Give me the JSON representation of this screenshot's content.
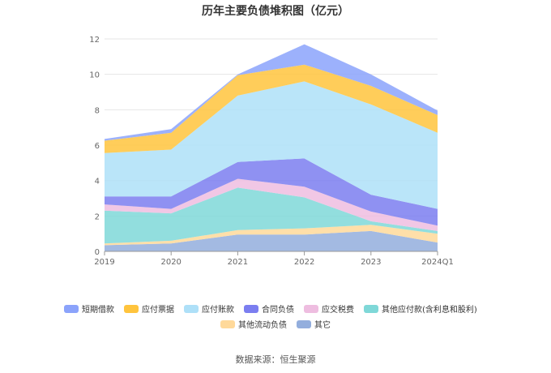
{
  "chart_data": {
    "type": "area",
    "stacked": true,
    "title": "历年主要负债堆积图（亿元）",
    "categories": [
      "2019",
      "2020",
      "2021",
      "2022",
      "2023",
      "2024Q1"
    ],
    "ylim": [
      0,
      12
    ],
    "yticks": [
      "0",
      "2",
      "4",
      "6",
      "8",
      "10",
      "12"
    ],
    "grid": true,
    "legend_position": "bottom",
    "series": [
      {
        "name": "其它",
        "color": "#93aedd",
        "values": [
          0.35,
          0.45,
          0.95,
          0.95,
          1.15,
          0.5
        ]
      },
      {
        "name": "其他流动负债",
        "color": "#ffd99a",
        "values": [
          0.1,
          0.15,
          0.25,
          0.35,
          0.35,
          0.5
        ]
      },
      {
        "name": "其他应付款(含利息和股利)",
        "color": "#7fd8d8",
        "values": [
          1.85,
          1.55,
          2.4,
          1.75,
          0.2,
          0.15
        ]
      },
      {
        "name": "应交税费",
        "color": "#eebde0",
        "values": [
          0.35,
          0.25,
          0.5,
          0.6,
          0.55,
          0.3
        ]
      },
      {
        "name": "合同负债",
        "color": "#7b7ef0",
        "values": [
          0.45,
          0.7,
          0.95,
          1.6,
          0.95,
          0.95
        ]
      },
      {
        "name": "应付账款",
        "color": "#aee0f8",
        "values": [
          2.45,
          2.65,
          3.75,
          4.35,
          5.1,
          4.3
        ]
      },
      {
        "name": "应付票据",
        "color": "#ffc43d",
        "values": [
          0.7,
          0.95,
          1.15,
          0.95,
          1.05,
          1.0
        ]
      },
      {
        "name": "短期借款",
        "color": "#8ba3fb",
        "values": [
          0.1,
          0.2,
          0.05,
          1.15,
          0.65,
          0.25
        ]
      }
    ],
    "legend_order": [
      "短期借款",
      "应付票据",
      "应付账款",
      "合同负债",
      "应交税费",
      "其他应付款(含利息和股利)",
      "其他流动负债",
      "其它"
    ]
  },
  "source_text": "数据来源：恒生聚源"
}
